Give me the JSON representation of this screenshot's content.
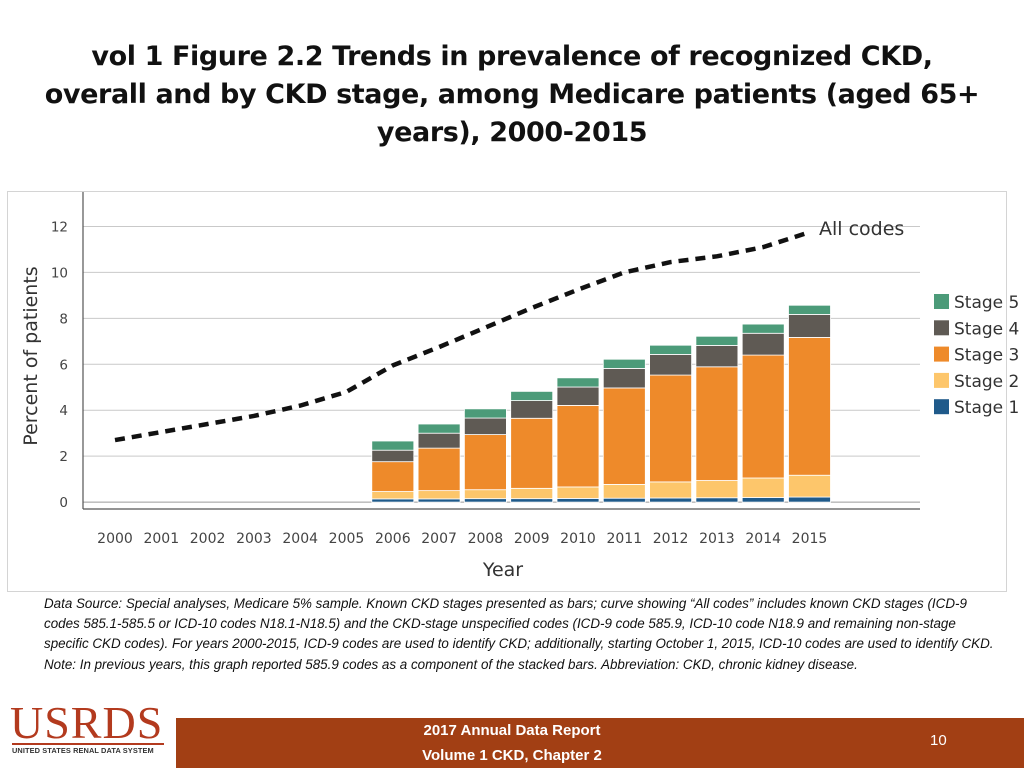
{
  "title": "vol 1 Figure 2.2 Trends in prevalence of recognized CKD, overall and by CKD stage, among Medicare patients (aged 65+ years), 2000-2015",
  "chart_data": {
    "type": "bar",
    "stacked": true,
    "categories": [
      "2000",
      "2001",
      "2002",
      "2003",
      "2004",
      "2005",
      "2006",
      "2007",
      "2008",
      "2009",
      "2010",
      "2011",
      "2012",
      "2013",
      "2014",
      "2015"
    ],
    "series": [
      {
        "name": "Stage 1",
        "color": "#1f5a8a",
        "values": [
          null,
          null,
          null,
          null,
          null,
          null,
          0.14,
          0.14,
          0.15,
          0.15,
          0.16,
          0.17,
          0.18,
          0.19,
          0.2,
          0.22
        ]
      },
      {
        "name": "Stage 2",
        "color": "#fdc66b",
        "values": [
          null,
          null,
          null,
          null,
          null,
          null,
          0.32,
          0.36,
          0.39,
          0.45,
          0.5,
          0.6,
          0.7,
          0.75,
          0.85,
          0.95
        ]
      },
      {
        "name": "Stage 3",
        "color": "#ee8a2a",
        "values": [
          null,
          null,
          null,
          null,
          null,
          null,
          1.3,
          1.85,
          2.4,
          3.05,
          3.55,
          4.2,
          4.65,
          4.95,
          5.35,
          6.0
        ]
      },
      {
        "name": "Stage 4",
        "color": "#5f5a54",
        "values": [
          null,
          null,
          null,
          null,
          null,
          null,
          0.5,
          0.65,
          0.72,
          0.77,
          0.8,
          0.85,
          0.9,
          0.93,
          0.95,
          1.0
        ]
      },
      {
        "name": "Stage 5",
        "color": "#4c9b79",
        "values": [
          null,
          null,
          null,
          null,
          null,
          null,
          0.4,
          0.4,
          0.4,
          0.4,
          0.4,
          0.4,
          0.4,
          0.4,
          0.4,
          0.4
        ]
      }
    ],
    "line": {
      "name": "All codes",
      "label": "All codes",
      "values": [
        2.7,
        3.05,
        3.4,
        3.75,
        4.2,
        4.8,
        5.95,
        6.75,
        7.6,
        8.45,
        9.25,
        10.0,
        10.45,
        10.7,
        11.1,
        11.75
      ]
    },
    "xlabel": "Year",
    "ylabel": "Percent of patients",
    "yticks": [
      0,
      2,
      4,
      6,
      8,
      10,
      12
    ],
    "ylim": [
      -0.3,
      13.5
    ],
    "grid": true,
    "legend": {
      "placement": "right",
      "entries": [
        "Stage 5",
        "Stage 4",
        "Stage 3",
        "Stage 2",
        "Stage 1"
      ]
    }
  },
  "source_note": "Data Source: Special analyses, Medicare 5% sample. Known CKD stages presented as bars; curve showing “All codes” includes known CKD stages (ICD-9 codes 585.1-585.5 or ICD-10 codes N18.1-N18.5) and the CKD-stage unspecified codes (ICD-9 code 585.9, ICD-10 code N18.9 and remaining non-stage specific CKD codes). For years 2000-2015, ICD-9 codes are used to identify CKD; additionally, starting October 1, 2015, ICD-10 codes are used to identify CKD. Note: In previous years, this graph reported 585.9 codes as a component of the stacked bars. Abbreviation: CKD, chronic kidney disease.",
  "footer": {
    "logo_text": "USRDS",
    "logo_subtitle": "UNITED STATES RENAL DATA SYSTEM",
    "line1": "2017 Annual Data Report",
    "line2": "Volume 1 CKD, Chapter 2",
    "page_number": "10"
  }
}
